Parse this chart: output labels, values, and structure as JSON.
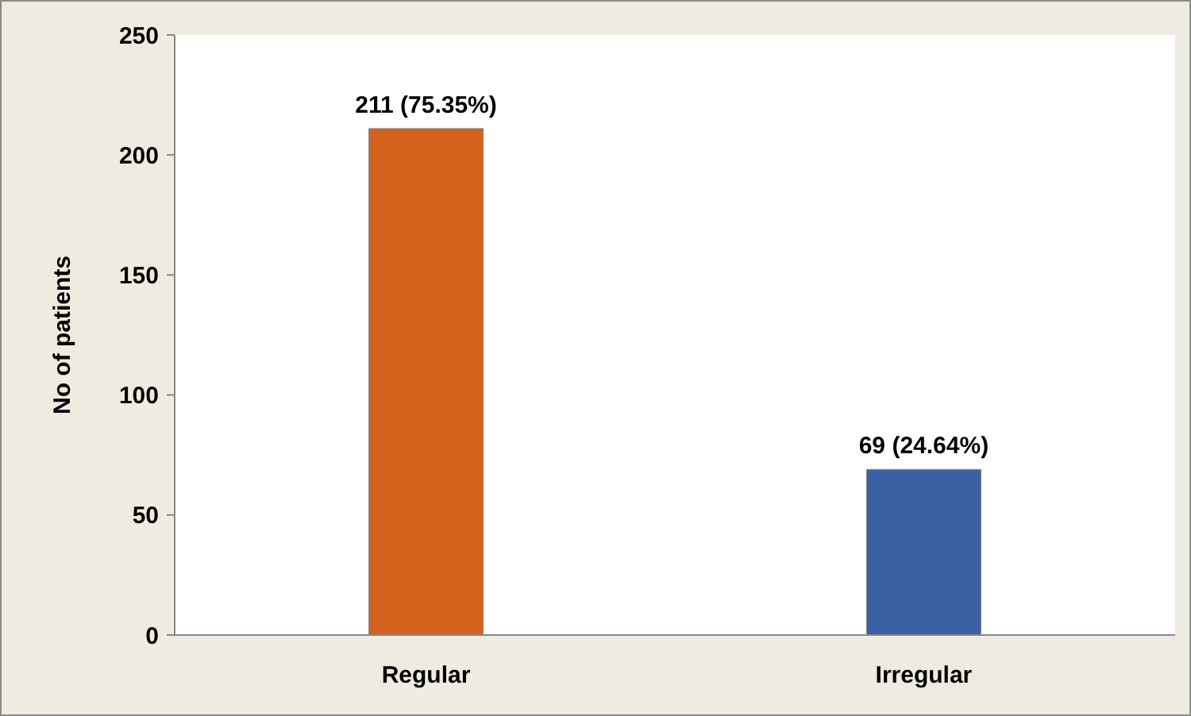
{
  "chart_data": {
    "type": "bar",
    "ylabel": "No of patients",
    "categories": [
      "Regular",
      "Irregular"
    ],
    "values": [
      211,
      69
    ],
    "colors": [
      "#d4621c",
      "#3b60a4"
    ],
    "value_labels": [
      "211 (75.35%)",
      "69 (24.64%)"
    ],
    "ylim": [
      0,
      250
    ],
    "yticks": [
      0,
      50,
      100,
      150,
      200,
      250
    ],
    "grid": false
  }
}
